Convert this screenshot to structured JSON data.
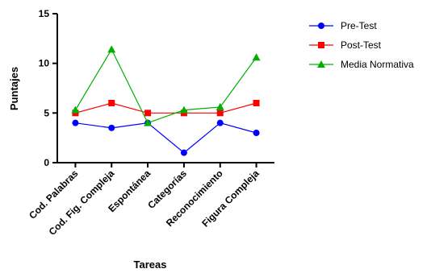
{
  "chart_data": {
    "type": "line",
    "title": "",
    "xlabel": "Tareas",
    "ylabel": "Puntajes",
    "categories": [
      "Cod. Palabras",
      "Cod. Fig. Compleja",
      "Espontánea",
      "Categorías",
      "Reconocimiento",
      "Figura Compleja"
    ],
    "ylim": [
      0,
      15
    ],
    "yticks": [
      "0",
      "5",
      "10",
      "15"
    ],
    "grid": false,
    "legend_position": "right",
    "series": [
      {
        "name": "Pre-Test",
        "values": [
          4,
          3.5,
          4,
          1,
          4,
          3
        ],
        "color": "#0000ff",
        "marker": "circle"
      },
      {
        "name": "Post-Test",
        "values": [
          5,
          6,
          5,
          5,
          5,
          6
        ],
        "color": "#ff0000",
        "marker": "square"
      },
      {
        "name": "Media Normativa",
        "values": [
          5.3,
          11.4,
          4,
          5.3,
          5.6,
          10.6
        ],
        "color": "#00b000",
        "marker": "triangle"
      }
    ]
  }
}
